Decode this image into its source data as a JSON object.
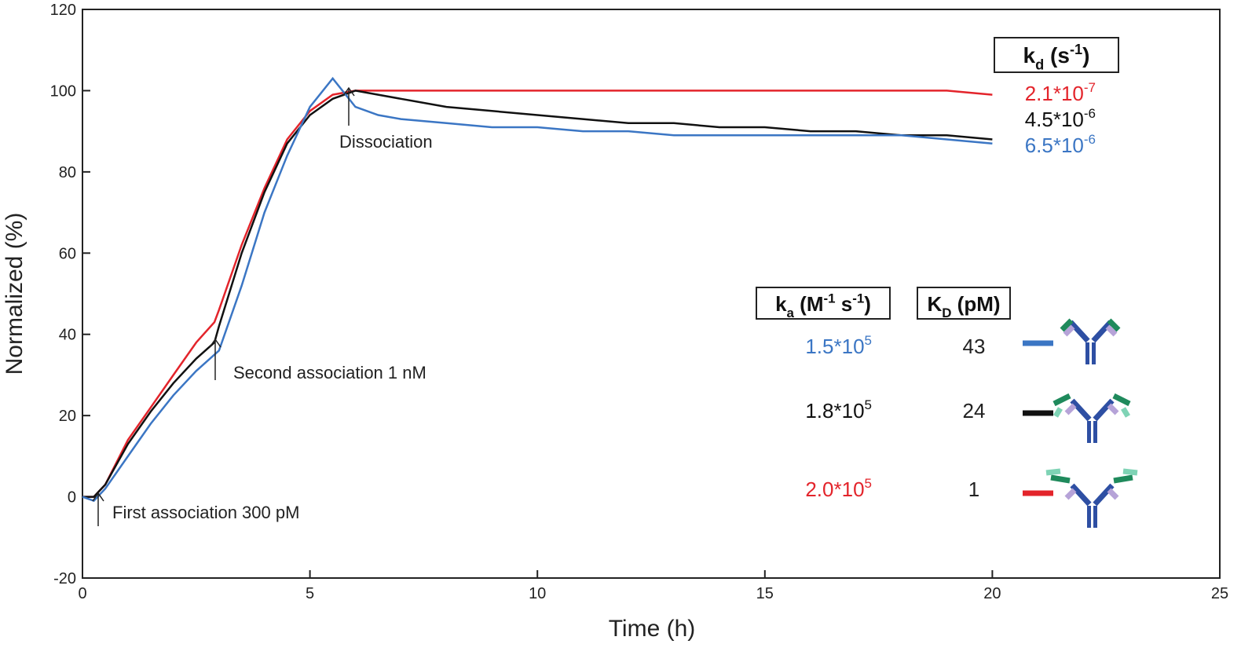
{
  "chart_data": {
    "type": "line",
    "xlabel": "Time (h)",
    "ylabel": "Normalized (%)",
    "xlim": [
      0,
      25
    ],
    "xticks": [
      0,
      5,
      10,
      15,
      20,
      25
    ],
    "ylim": [
      -20,
      120
    ],
    "yticks": [
      -20,
      0,
      20,
      40,
      60,
      80,
      100,
      120
    ],
    "x": [
      0,
      0.25,
      0.5,
      1,
      1.5,
      2,
      2.5,
      2.9,
      3,
      3.5,
      4,
      4.5,
      5,
      5.5,
      6,
      6.5,
      7,
      8,
      9,
      10,
      11,
      12,
      13,
      14,
      15,
      16,
      17,
      18,
      19,
      20
    ],
    "series": [
      {
        "color": "#e3242b",
        "values": [
          0,
          0,
          3,
          14,
          22,
          30,
          38,
          43,
          46,
          62,
          76,
          88,
          95,
          99,
          100,
          100,
          100,
          100,
          100,
          100,
          100,
          100,
          100,
          100,
          100,
          100,
          100,
          100,
          100,
          99
        ]
      },
      {
        "color": "#111111",
        "values": [
          0,
          0,
          3,
          13,
          21,
          28,
          34,
          38,
          42,
          60,
          75,
          87,
          94,
          98,
          100,
          99,
          98,
          96,
          95,
          94,
          93,
          92,
          92,
          91,
          91,
          90,
          90,
          89,
          89,
          88
        ]
      },
      {
        "color": "#3b76c4",
        "values": [
          0,
          -1,
          2,
          10,
          18,
          25,
          31,
          35,
          36,
          52,
          70,
          84,
          96,
          103,
          96,
          94,
          93,
          92,
          91,
          91,
          90,
          90,
          89,
          89,
          89,
          89,
          89,
          89,
          88,
          87
        ]
      }
    ],
    "annotations": [
      "First association 300 pM",
      "Second association 1 nM",
      "Dissociation"
    ],
    "kd": {
      "header": [
        {
          "text": "k",
          "pos": "base"
        },
        {
          "text": "d",
          "pos": "sub"
        },
        {
          "text": " (s",
          "pos": "base"
        },
        {
          "text": "-1",
          "pos": "sup"
        },
        {
          "text": ")",
          "pos": "base"
        }
      ],
      "rows": [
        {
          "text": "2.1*10",
          "exp": "-7",
          "color": "#e3242b"
        },
        {
          "text": "4.5*10",
          "exp": "-6",
          "color": "#111111"
        },
        {
          "text": "6.5*10",
          "exp": "-6",
          "color": "#3b76c4"
        }
      ]
    },
    "ka": {
      "header": [
        {
          "text": "k",
          "pos": "base"
        },
        {
          "text": "a",
          "pos": "sub"
        },
        {
          "text": " (M",
          "pos": "base"
        },
        {
          "text": "-1",
          "pos": "sup"
        },
        {
          "text": " s",
          "pos": "base"
        },
        {
          "text": "-1",
          "pos": "sup"
        },
        {
          "text": ")",
          "pos": "base"
        }
      ],
      "rows": [
        {
          "text": "1.5*10",
          "exp": "5",
          "color": "#3b76c4"
        },
        {
          "text": "1.8*10",
          "exp": "5",
          "color": "#111111"
        },
        {
          "text": "2.0*10",
          "exp": "5",
          "color": "#e3242b"
        }
      ]
    },
    "KD": {
      "header": [
        {
          "text": "K",
          "pos": "base"
        },
        {
          "text": "D",
          "pos": "sub"
        },
        {
          "text": " (pM)",
          "pos": "base"
        }
      ],
      "rows": [
        {
          "text": "43",
          "color": "#3b76c4"
        },
        {
          "text": "24",
          "color": "#111111"
        },
        {
          "text": "1",
          "color": "#e3242b"
        }
      ]
    }
  }
}
